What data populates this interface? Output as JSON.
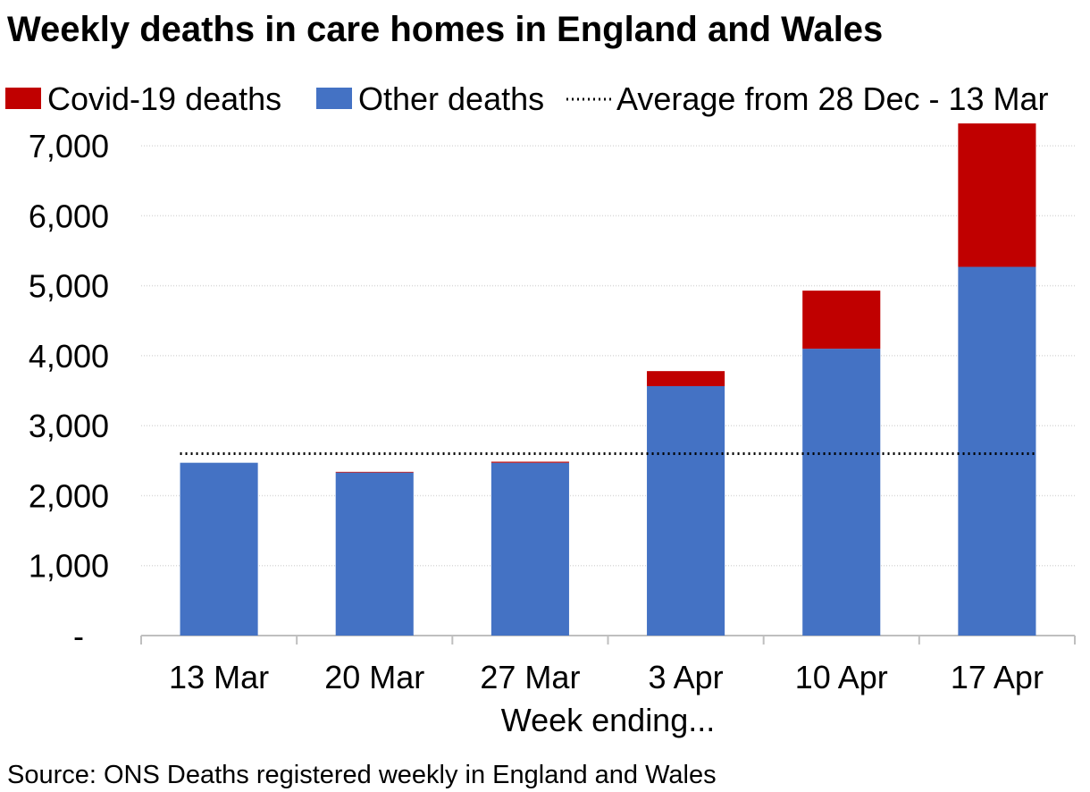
{
  "chart_data": {
    "type": "bar",
    "stacked": true,
    "title": "Weekly deaths in care homes in England and Wales",
    "xlabel": "Week ending...",
    "ylabel": "",
    "ylim": [
      0,
      7500
    ],
    "yticks": [
      0,
      1000,
      2000,
      3000,
      4000,
      5000,
      6000,
      7000
    ],
    "ytick_labels": [
      "-",
      "1,000",
      "2,000",
      "3,000",
      "4,000",
      "5,000",
      "6,000",
      "7,000"
    ],
    "grid": true,
    "legend_position": "top",
    "categories": [
      "13 Mar",
      "20 Mar",
      "27 Mar",
      "3 Apr",
      "10 Apr",
      "17 Apr"
    ],
    "series": [
      {
        "name": "Other deaths",
        "color": "#4472C4",
        "values": [
          2470,
          2330,
          2470,
          3565,
          4100,
          5270
        ]
      },
      {
        "name": "Covid-19 deaths",
        "color": "#C00000",
        "values": [
          0,
          10,
          15,
          215,
          830,
          2050
        ]
      }
    ],
    "reference_line": {
      "name": "Average from 28 Dec - 13 Mar",
      "value": 2600,
      "style": "dotted",
      "color": "#000000"
    },
    "legend": [
      {
        "label": "Covid-19 deaths",
        "color": "#C00000",
        "marker": "box"
      },
      {
        "label": "Other deaths",
        "color": "#4472C4",
        "marker": "box"
      },
      {
        "label": "Average from 28 Dec - 13 Mar",
        "color": "#000000",
        "marker": "dotted-line"
      }
    ],
    "source": "Source: ONS Deaths registered weekly in England and Wales"
  }
}
